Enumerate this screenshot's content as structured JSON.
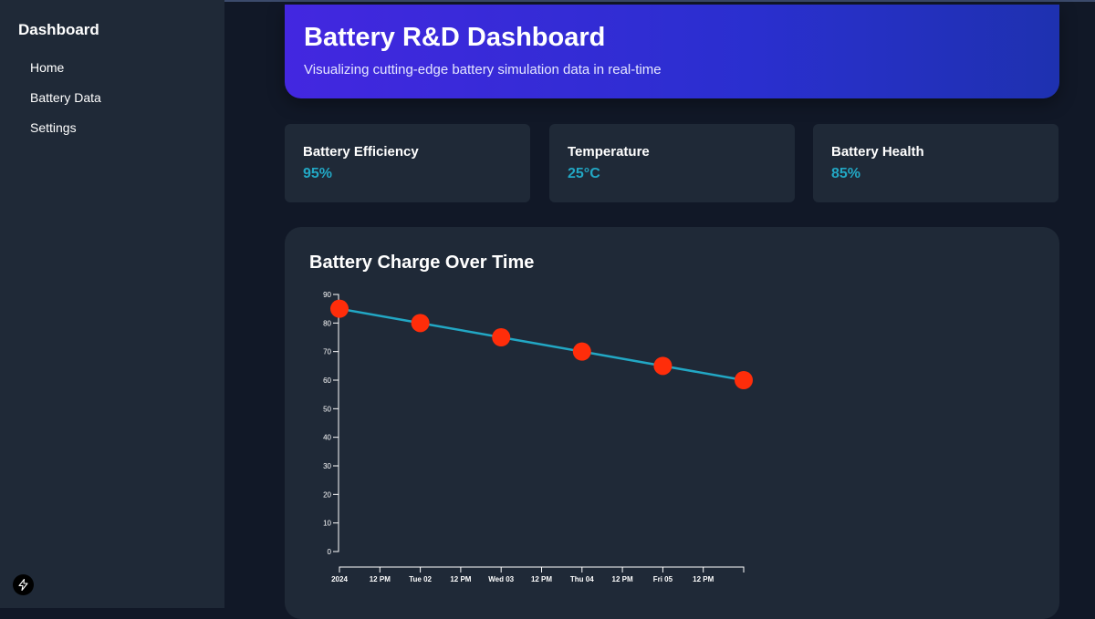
{
  "sidebar": {
    "title": "Dashboard",
    "items": [
      {
        "label": "Home"
      },
      {
        "label": "Battery Data"
      },
      {
        "label": "Settings"
      }
    ]
  },
  "header": {
    "title": "Battery R&D Dashboard",
    "subtitle": "Visualizing cutting-edge battery simulation data in real-time"
  },
  "stats": [
    {
      "label": "Battery Efficiency",
      "value": "95%"
    },
    {
      "label": "Temperature",
      "value": "25°C"
    },
    {
      "label": "Battery Health",
      "value": "85%"
    }
  ],
  "chart_data": {
    "type": "line",
    "title": "Battery Charge Over Time",
    "xlabel": "",
    "ylabel": "",
    "x": [
      "2024-01-01 00:00",
      "2024-01-02 00:00",
      "2024-01-03 00:00",
      "2024-01-04 00:00",
      "2024-01-05 00:00",
      "2024-01-06 00:00"
    ],
    "y": [
      85,
      80,
      75,
      70,
      65,
      60
    ],
    "xlim": [
      "2024-01-01 00:00",
      "2024-01-06 00:00"
    ],
    "ylim": [
      0,
      90
    ],
    "y_ticks": [
      0,
      10,
      20,
      30,
      40,
      50,
      60,
      70,
      80,
      90
    ],
    "x_tick_labels": [
      "2024",
      "12 PM",
      "Tue 02",
      "12 PM",
      "Wed 03",
      "12 PM",
      "Thu 04",
      "12 PM",
      "Fri 05",
      "12 PM"
    ],
    "grid": false,
    "colors": {
      "line": "#22a7c4",
      "point": "#ff2d0a"
    }
  }
}
